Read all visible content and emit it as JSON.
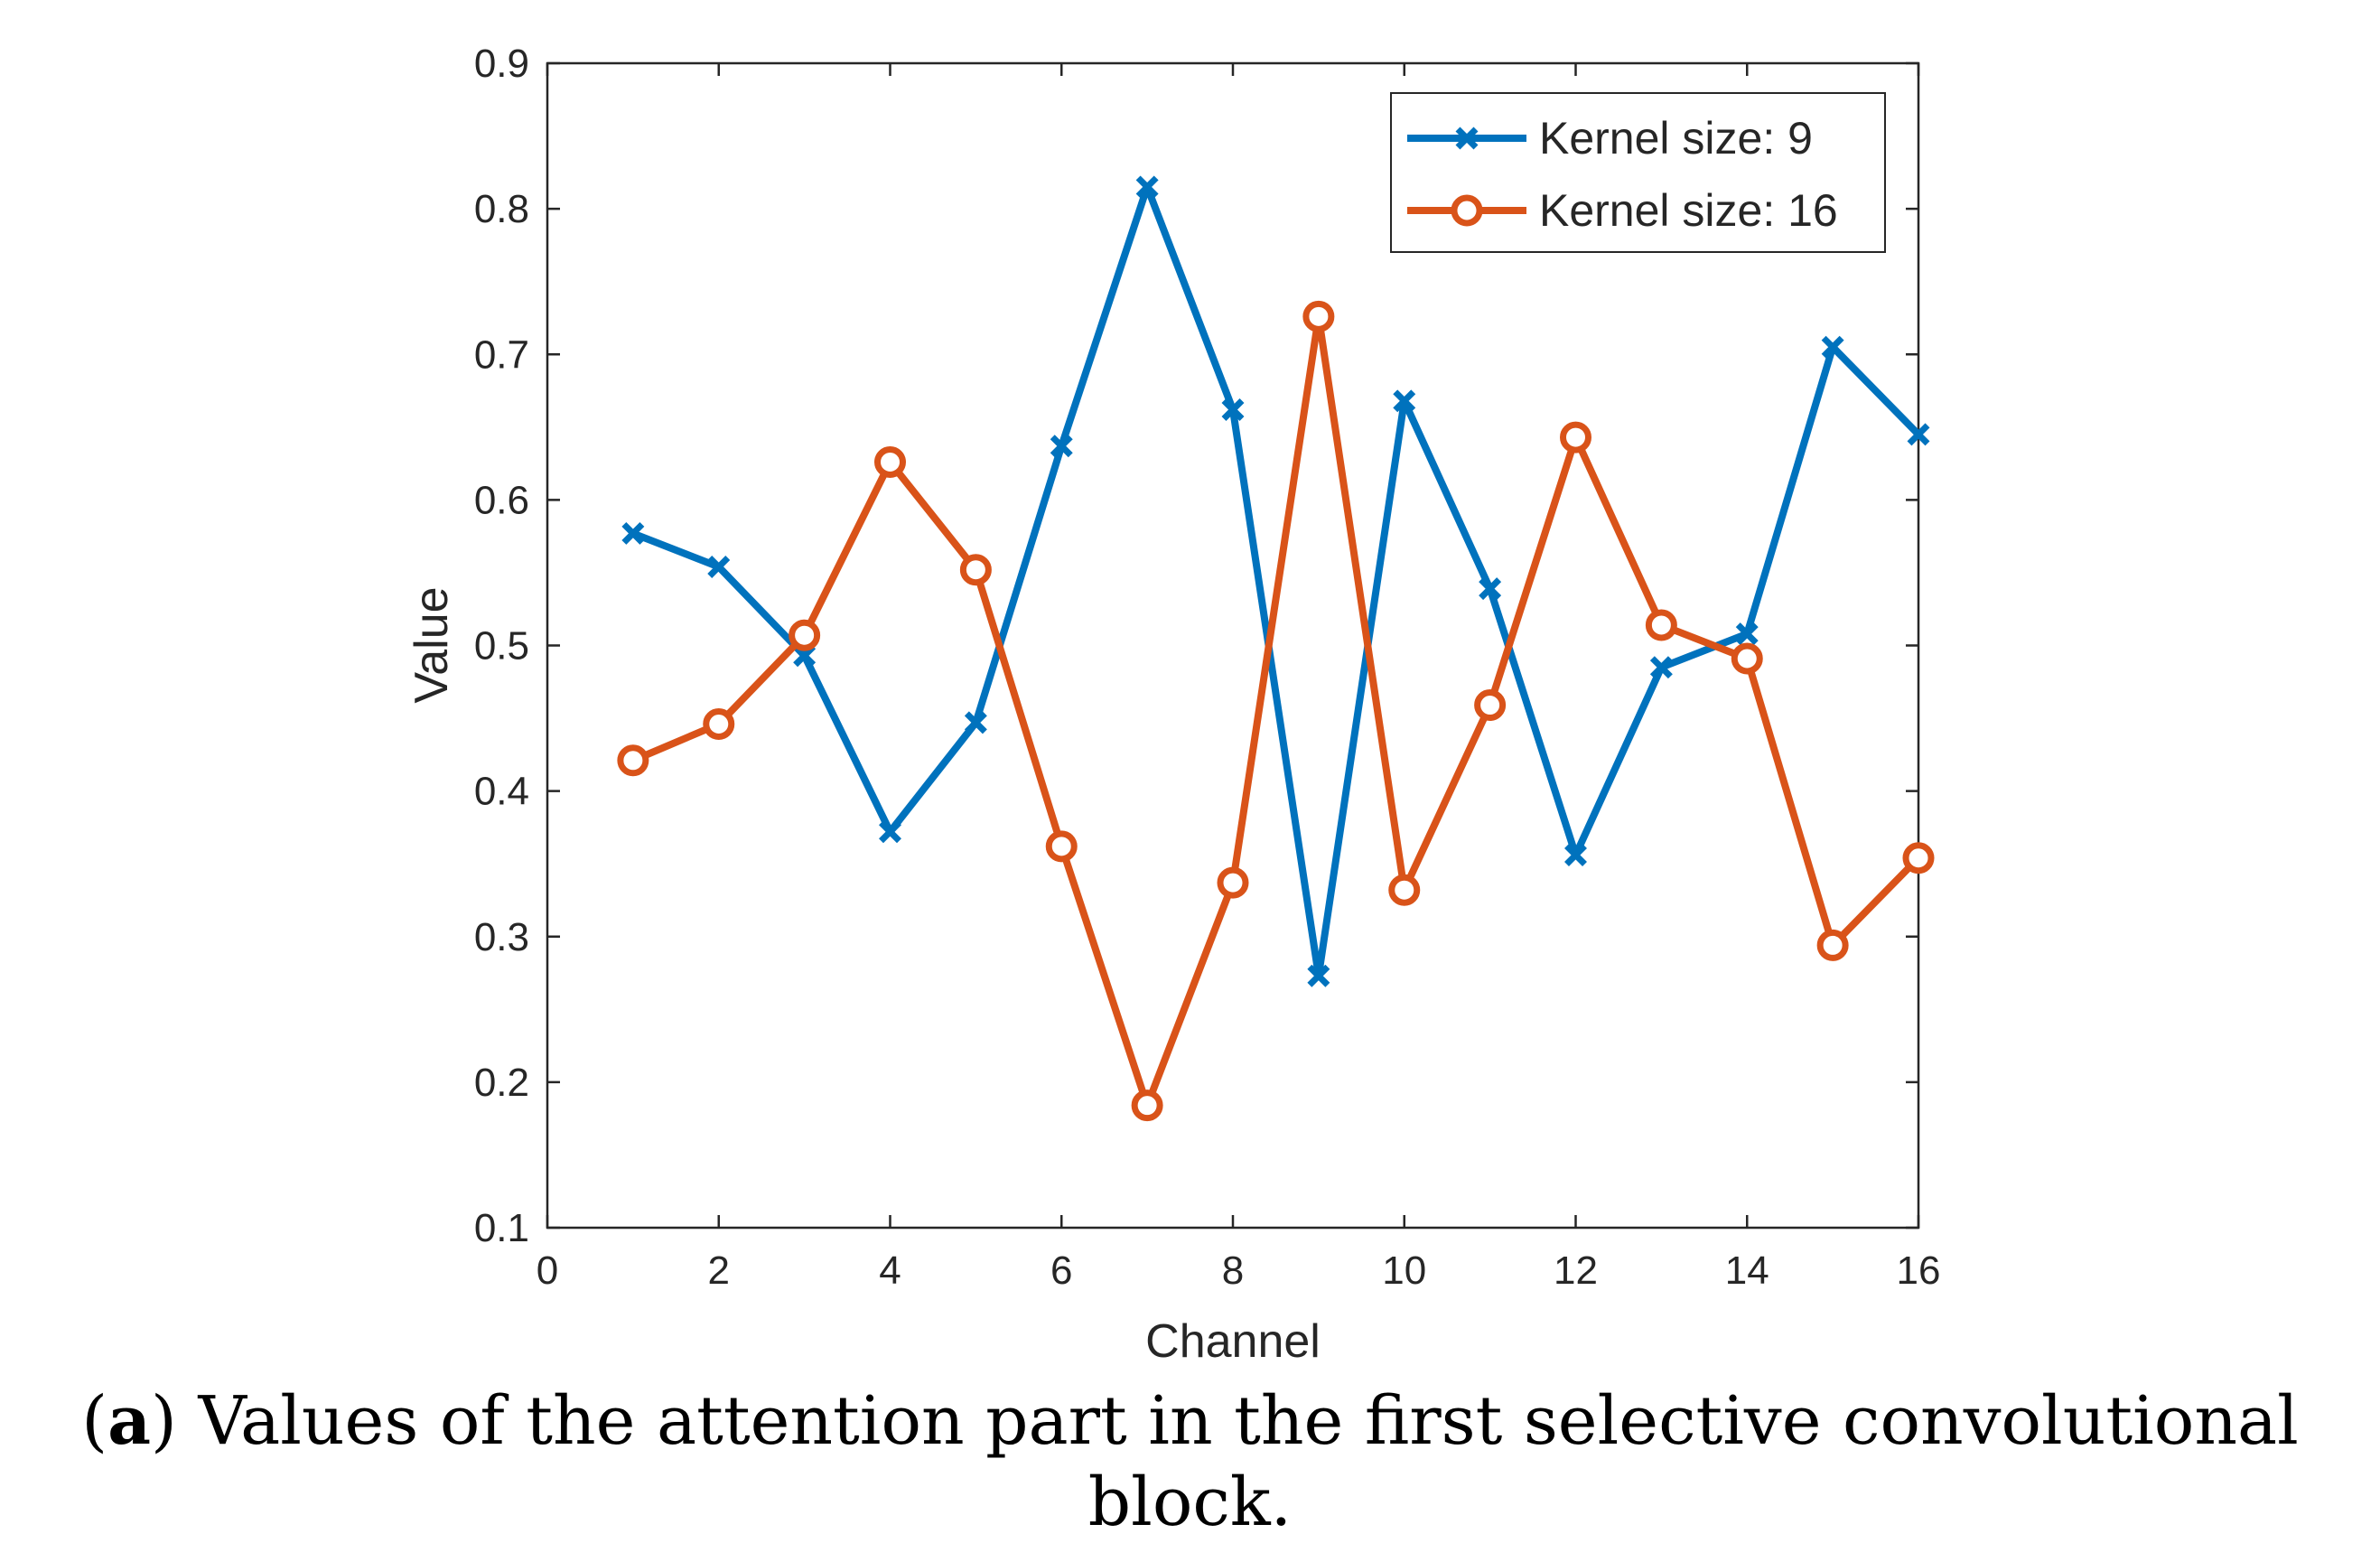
{
  "chart_data": {
    "type": "line",
    "title": "",
    "xlabel": "Channel",
    "ylabel": "Value",
    "xlim": [
      0,
      16
    ],
    "ylim": [
      0.1,
      0.9
    ],
    "xticks": [
      0,
      2,
      4,
      6,
      8,
      10,
      12,
      14,
      16
    ],
    "yticks": [
      0.1,
      0.2,
      0.3,
      0.4,
      0.5,
      0.6,
      0.7,
      0.8,
      0.9
    ],
    "x": [
      1,
      2,
      3,
      4,
      5,
      6,
      7,
      8,
      9,
      10,
      11,
      12,
      13,
      14,
      15,
      16
    ],
    "series": [
      {
        "name": "Kernel size: 9",
        "color": "#0072BD",
        "marker": "x",
        "values": [
          0.577,
          0.554,
          0.493,
          0.372,
          0.447,
          0.637,
          0.815,
          0.662,
          0.273,
          0.668,
          0.539,
          0.356,
          0.485,
          0.508,
          0.705,
          0.645
        ]
      },
      {
        "name": "Kernel size: 16",
        "color": "#D95319",
        "marker": "o",
        "values": [
          0.421,
          0.446,
          0.507,
          0.626,
          0.552,
          0.362,
          0.184,
          0.337,
          0.726,
          0.332,
          0.459,
          0.643,
          0.514,
          0.491,
          0.294,
          0.354
        ]
      }
    ],
    "legend_position": "top-right",
    "grid": false
  },
  "caption": {
    "label": "a",
    "text": " Values of the attention part in the first selective convolutional block."
  }
}
